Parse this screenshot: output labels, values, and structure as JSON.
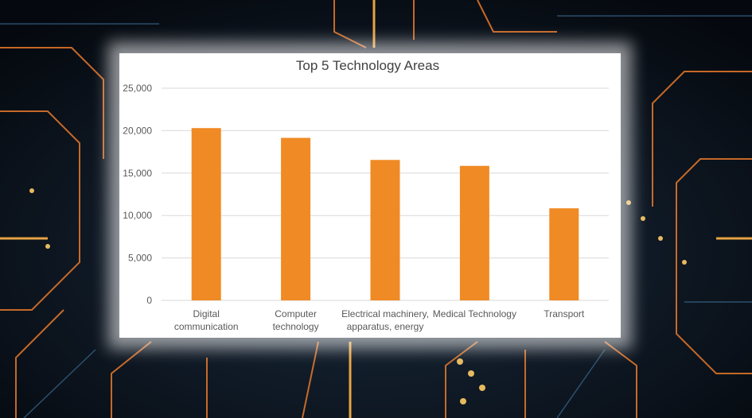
{
  "chart_data": {
    "type": "bar",
    "title": "Top 5 Technology Areas",
    "categories": [
      [
        "Digital",
        "communication"
      ],
      [
        "Computer",
        "technology"
      ],
      [
        "Electrical machinery,",
        "apparatus, energy"
      ],
      [
        "Medical Technology"
      ],
      [
        "Transport"
      ]
    ],
    "values": [
      20300,
      19150,
      16550,
      15850,
      10850
    ],
    "ylim": [
      0,
      25000
    ],
    "yticks": [
      0,
      5000,
      10000,
      15000,
      20000,
      25000
    ],
    "ytick_labels": [
      "0",
      "5,000",
      "10,000",
      "15,000",
      "20,000",
      "25,000"
    ],
    "xlabel": "",
    "ylabel": "",
    "grid": true,
    "bar_color": "#F08A24",
    "grid_color": "#D9D9D9"
  }
}
